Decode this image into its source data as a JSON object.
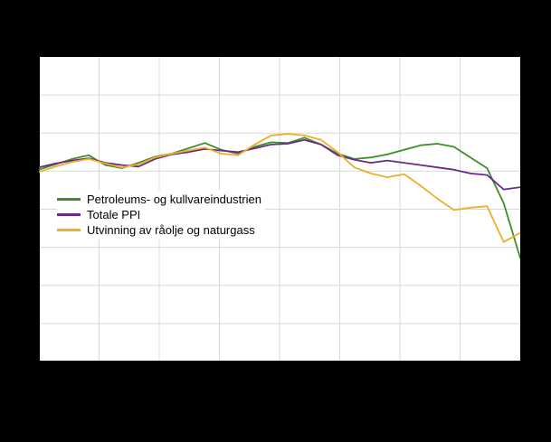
{
  "page": {
    "background_color": "#000000",
    "plot_background_color": "#ffffff",
    "gridline_color": "#d9d9d9",
    "axis_color": "#000000"
  },
  "chart_data": {
    "type": "line",
    "title": "",
    "xlabel": "",
    "ylabel": "",
    "axis_tick_labels_visible": false,
    "ylim": [
      0,
      400
    ],
    "y_gridline_step": 50,
    "vertical_gridline_count": 7,
    "legend_position": "inside-left",
    "x_index": [
      0,
      1,
      2,
      3,
      4,
      5,
      6,
      7,
      8,
      9,
      10,
      11,
      12,
      13,
      14,
      15,
      16,
      17,
      18,
      19,
      20,
      21,
      22,
      23,
      24,
      25,
      26,
      27,
      28,
      29
    ],
    "series": [
      {
        "name": "Petroleums- og kullvareindustrien",
        "color": "#3e8e28",
        "values": [
          252,
          259,
          266,
          271,
          258,
          254,
          261,
          269,
          273,
          280,
          287,
          278,
          273,
          282,
          288,
          287,
          294,
          285,
          273,
          266,
          268,
          272,
          278,
          284,
          286,
          282,
          268,
          254,
          208,
          136
        ]
      },
      {
        "name": "Totale PPI",
        "color": "#6a2a8a",
        "values": [
          255,
          260,
          264,
          267,
          261,
          258,
          256,
          266,
          272,
          275,
          279,
          277,
          275,
          280,
          285,
          286,
          291,
          285,
          271,
          265,
          261,
          264,
          261,
          258,
          255,
          252,
          247,
          245,
          226,
          229
        ]
      },
      {
        "name": "Utvinning av råolje og naturgass",
        "color": "#eead2b",
        "values": [
          249,
          256,
          262,
          266,
          260,
          255,
          259,
          268,
          273,
          277,
          281,
          273,
          271,
          285,
          297,
          299,
          297,
          291,
          275,
          255,
          247,
          242,
          246,
          231,
          214,
          199,
          202,
          204,
          157,
          169
        ]
      }
    ]
  }
}
